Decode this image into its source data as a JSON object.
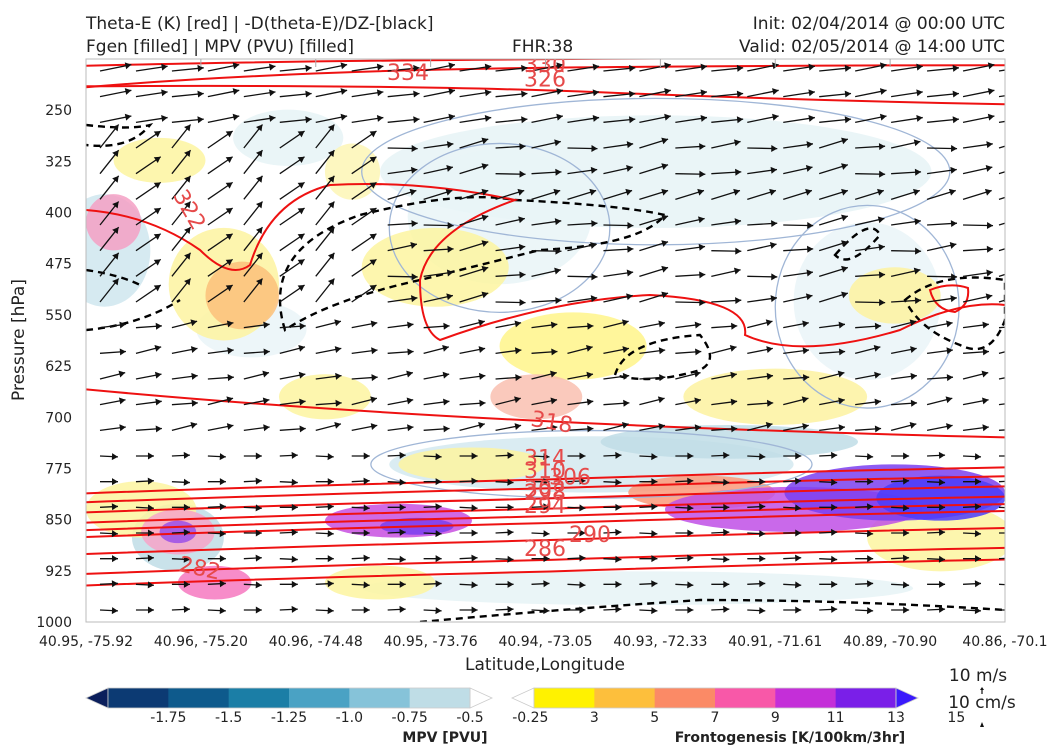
{
  "header": {
    "line1_left": "Theta-E (K) [red] | -D(theta-E)/DZ-[black]",
    "line2_left": "Fgen [filled] | MPV (PVU) [filled]",
    "fhr": "FHR:38",
    "init": "Init: 02/04/2014 @ 00:00 UTC",
    "valid": "Valid: 02/05/2014 @ 14:00 UTC"
  },
  "vector_key": {
    "horizontal": "10 m/s",
    "vertical": "10 cm/s"
  },
  "colorbars": {
    "mpv": {
      "label": "MPV [PVU]",
      "ticks": [
        "-1.75",
        "-1.5",
        "-1.25",
        "-1.0",
        "-0.75",
        "-0.5",
        "-0.25"
      ],
      "colors": [
        "#0b1f5c",
        "#0c3a73",
        "#0e5a8c",
        "#1b7ea6",
        "#4aa2c4",
        "#86c3d9",
        "#bfdde6",
        "#ffffff"
      ]
    },
    "fgen": {
      "label": "Frontogenesis [K/100km/3hr]",
      "ticks": [
        "3",
        "5",
        "7",
        "9",
        "11",
        "13",
        "15"
      ],
      "colors": [
        "#ffffff",
        "#fff200",
        "#fdbf3c",
        "#fb8a66",
        "#f858a8",
        "#c42fd8",
        "#7a1fe8",
        "#3a1afc"
      ]
    }
  },
  "chart_data": {
    "type": "cross-section",
    "xlabel": "Latitude,Longitude",
    "ylabel": "Pressure [hPa]",
    "x_ticks": [
      "40.95, -75.92",
      "40.96, -75.20",
      "40.96, -74.48",
      "40.95, -73.76",
      "40.94, -73.05",
      "40.93, -72.33",
      "40.91, -71.61",
      "40.89, -70.90",
      "40.86, -70.1"
    ],
    "y_ticks": [
      250,
      325,
      400,
      475,
      550,
      625,
      700,
      775,
      850,
      925,
      1000
    ],
    "ylim": [
      1000,
      175
    ],
    "theta_e_contours": [
      {
        "level": "334",
        "p": 182
      },
      {
        "level": "330",
        "p": 190
      },
      {
        "level": "326",
        "p": 215
      },
      {
        "level": "322",
        "p": 410
      },
      {
        "level": "318",
        "p": 706
      },
      {
        "level": "314",
        "p": 788
      },
      {
        "level": "310",
        "p": 801
      },
      {
        "level": "306",
        "p": 816
      },
      {
        "level": "302",
        "p": 831
      },
      {
        "level": "298",
        "p": 842
      },
      {
        "level": "294",
        "p": 852
      },
      {
        "level": "290",
        "p": 877
      },
      {
        "level": "286",
        "p": 906
      },
      {
        "level": "282",
        "p": 923
      }
    ],
    "legend": "colorbars below plot",
    "grid": false
  }
}
